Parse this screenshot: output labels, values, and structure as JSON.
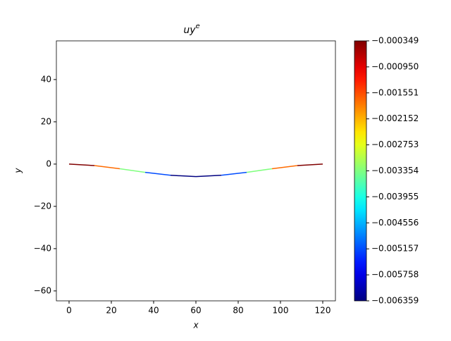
{
  "chart_data": {
    "type": "colored-line",
    "title": "uy",
    "title_superscript": "e",
    "x_label": "x",
    "y_label": "y",
    "x": [
      0,
      12,
      24,
      36,
      48,
      60,
      72,
      84,
      96,
      108,
      120
    ],
    "y": [
      0,
      -0.7,
      -2.2,
      -3.9,
      -5.3,
      -5.9,
      -5.3,
      -3.9,
      -2.2,
      -0.7,
      0
    ],
    "element_values": [
      -0.000349,
      -0.00173,
      -0.00335,
      -0.00516,
      -0.006359,
      -0.006359,
      -0.00516,
      -0.00335,
      -0.00173,
      -0.000349
    ],
    "colormap": "jet",
    "clim": [
      -0.006359,
      -0.000349
    ],
    "xlim": [
      -6,
      126
    ],
    "ylim": [
      -64.7,
      58.3
    ],
    "xticks": [
      0,
      20,
      40,
      60,
      80,
      100,
      120
    ],
    "yticks": [
      {
        "value": -60,
        "label": "−60"
      },
      {
        "value": -40,
        "label": "−40"
      },
      {
        "value": -20,
        "label": "−20"
      },
      0,
      20,
      40
    ],
    "cticks": [
      {
        "value": -0.006359,
        "label": "−0.006359"
      },
      {
        "value": -0.005758,
        "label": "−0.005758"
      },
      {
        "value": -0.005157,
        "label": "−0.005157"
      },
      {
        "value": -0.004556,
        "label": "−0.004556"
      },
      {
        "value": -0.003955,
        "label": "−0.003955"
      },
      {
        "value": -0.003354,
        "label": "−0.003354"
      },
      {
        "value": -0.002753,
        "label": "−0.002753"
      },
      {
        "value": -0.002152,
        "label": "−0.002152"
      },
      {
        "value": -0.001551,
        "label": "−0.001551"
      },
      {
        "value": -0.00095,
        "label": "−0.000950"
      },
      {
        "value": -0.000349,
        "label": "−0.000349"
      }
    ]
  }
}
